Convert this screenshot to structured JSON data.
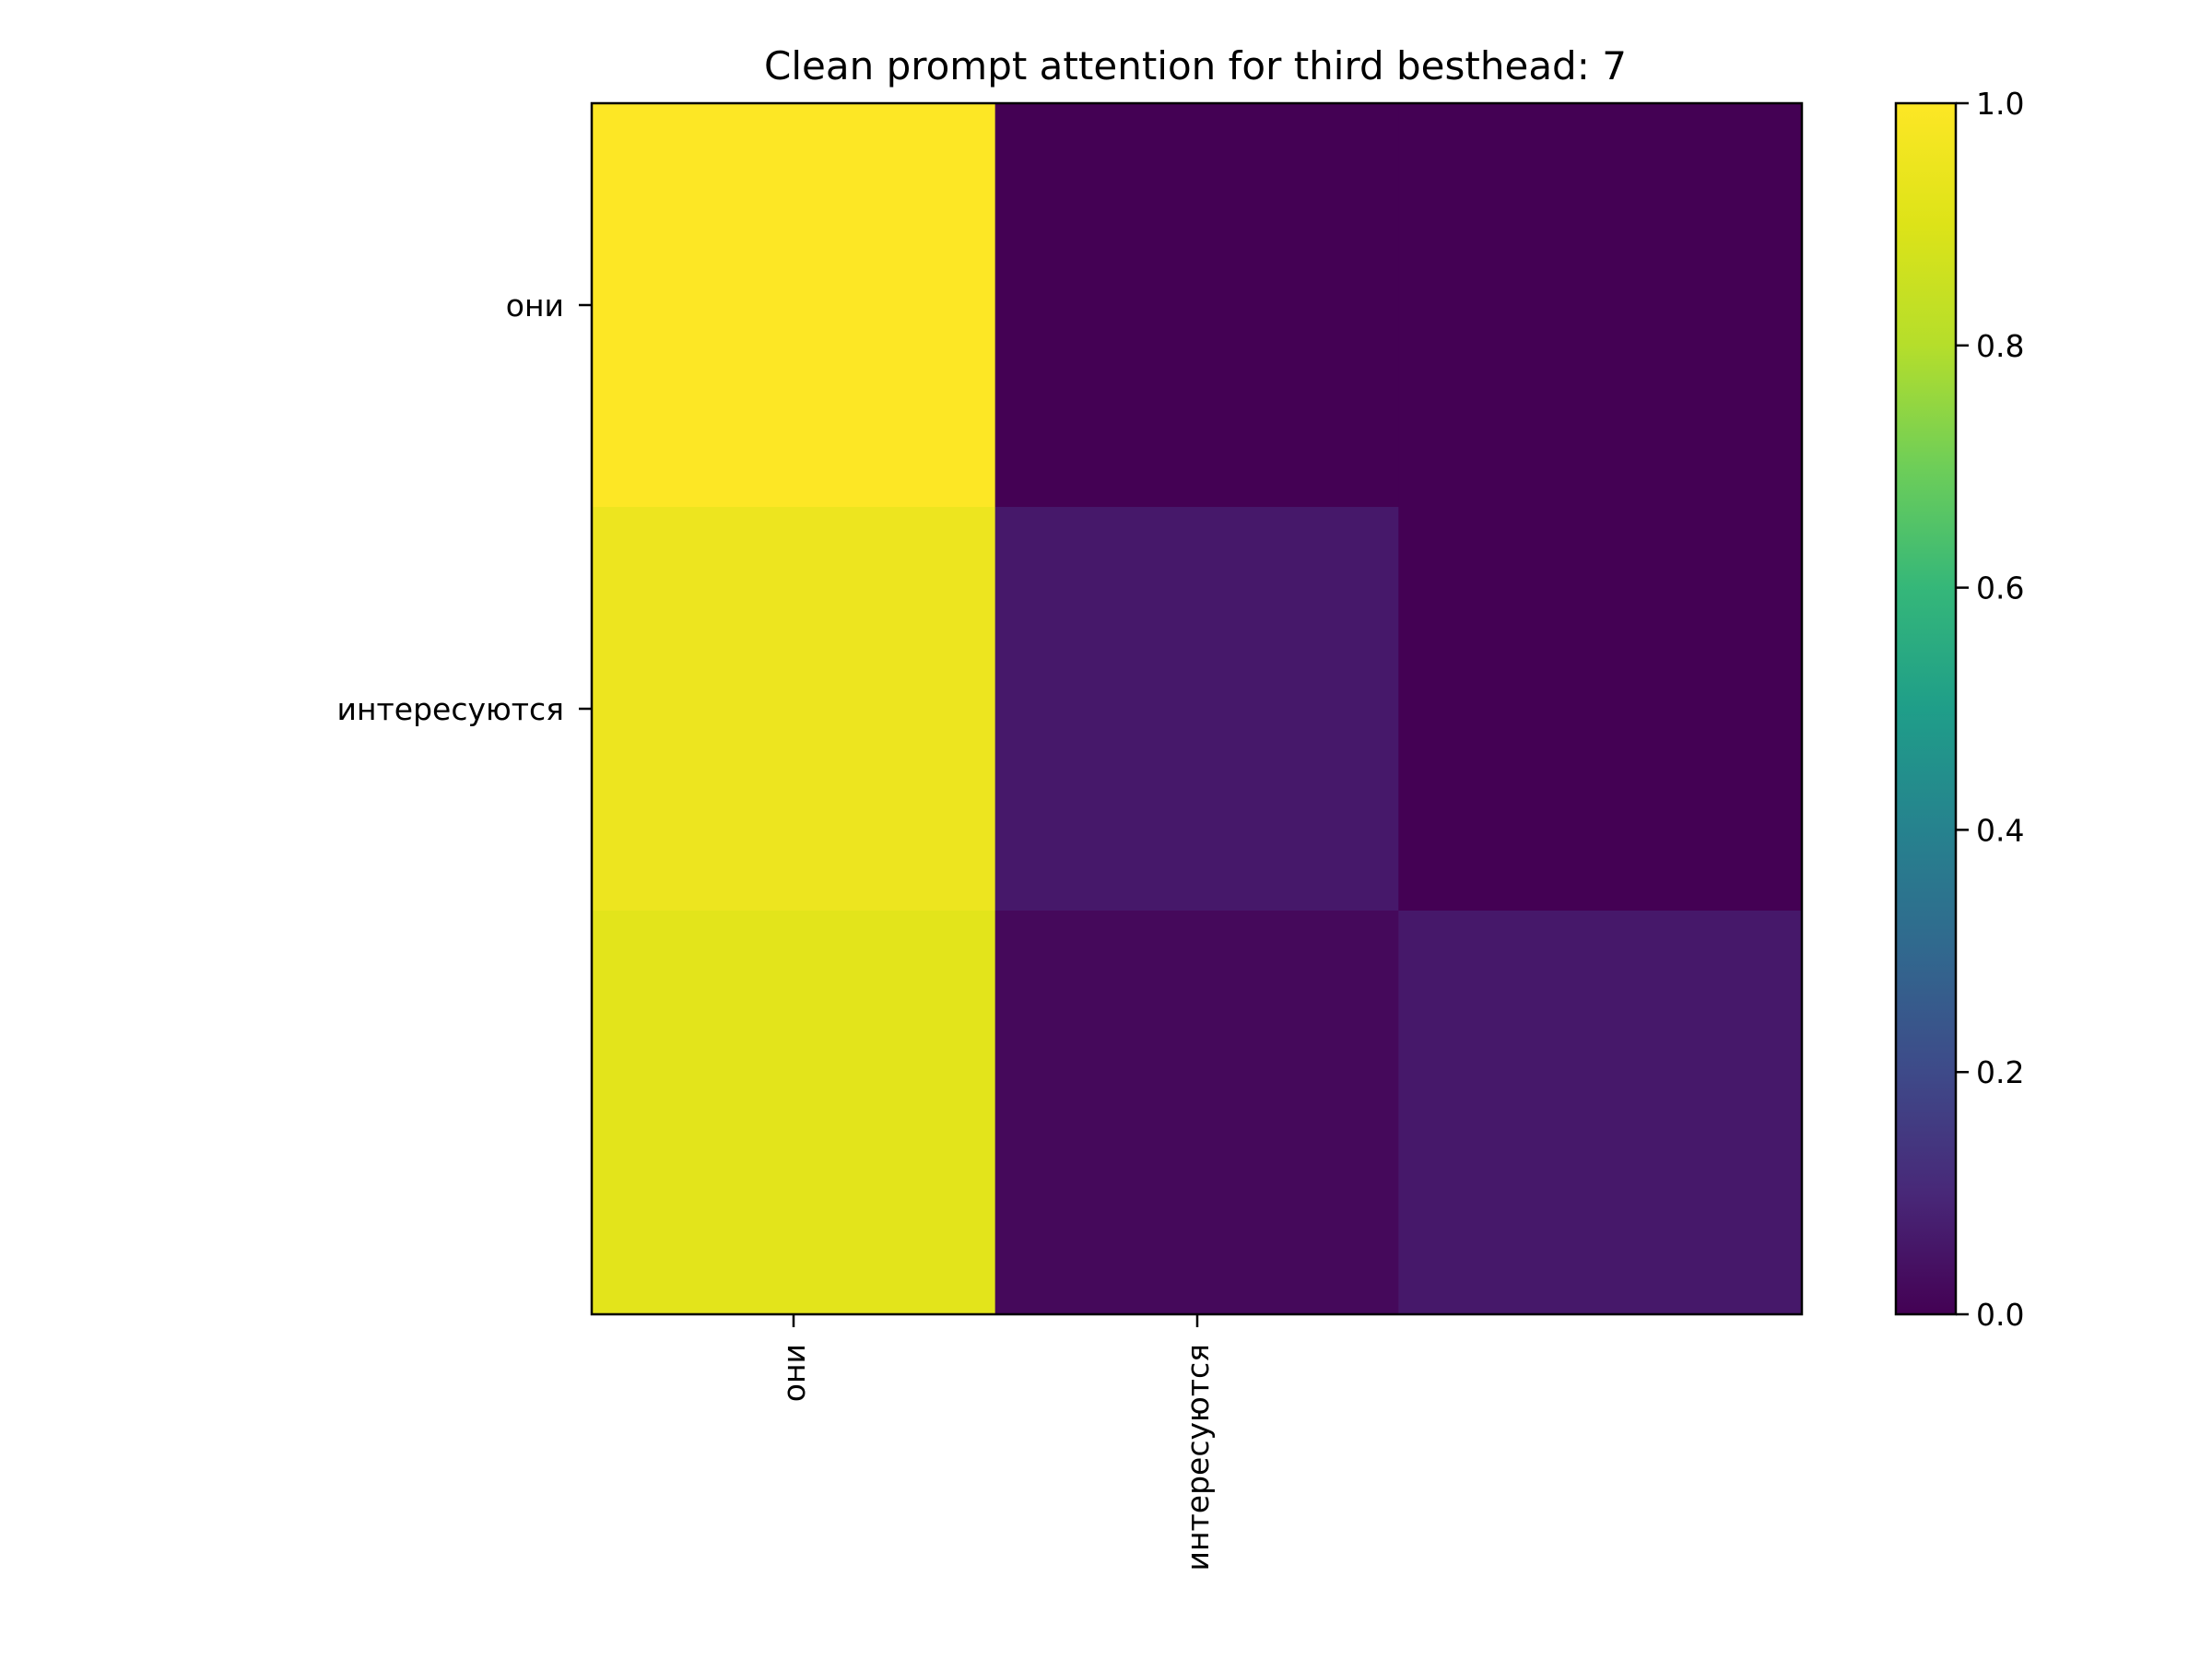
{
  "chart_data": {
    "type": "heatmap",
    "title": "Clean prompt attention for third besthead: 7",
    "xlabel": "",
    "ylabel": "",
    "x_tick_labels": [
      "они",
      "интересуются"
    ],
    "y_tick_labels": [
      "они",
      "интересуются"
    ],
    "rows": 3,
    "cols": 3,
    "values": [
      [
        1.0,
        0.0,
        0.0
      ],
      [
        0.95,
        0.06,
        0.0
      ],
      [
        0.92,
        0.02,
        0.06
      ]
    ],
    "colormap": "viridis",
    "colorbar": {
      "min": 0.0,
      "max": 1.0,
      "ticks": [
        "0.0",
        "0.2",
        "0.4",
        "0.6",
        "0.8",
        "1.0"
      ]
    },
    "grid": false
  }
}
